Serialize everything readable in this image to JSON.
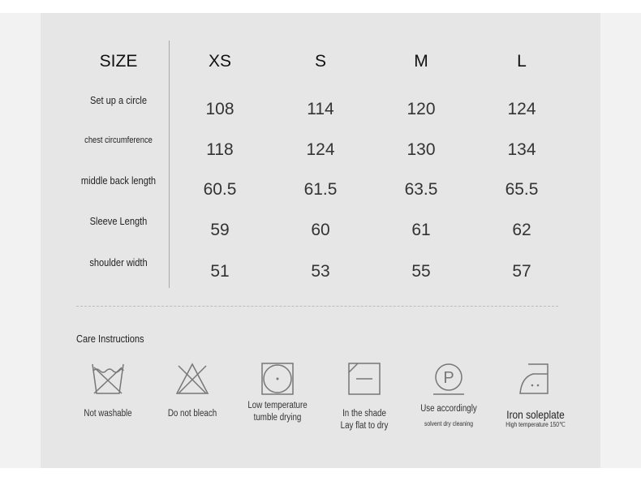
{
  "table": {
    "header": [
      "SIZE",
      "XS",
      "S",
      "M",
      "L"
    ],
    "rows": [
      {
        "label": "Set up a circle",
        "values": [
          "108",
          "114",
          "120",
          "124"
        ]
      },
      {
        "label": "chest circumference",
        "values": [
          "118",
          "124",
          "130",
          "134"
        ]
      },
      {
        "label": "middle back length",
        "values": [
          "60.5",
          "61.5",
          "63.5",
          "65.5"
        ]
      },
      {
        "label": "Sleeve Length",
        "values": [
          "59",
          "60",
          "61",
          "62"
        ]
      },
      {
        "label": "shoulder width",
        "values": [
          "51",
          "53",
          "55",
          "57"
        ]
      }
    ]
  },
  "care": {
    "title": "Care Instructions",
    "items": [
      {
        "icon": "no-wash-icon",
        "text": "Not washable"
      },
      {
        "icon": "no-bleach-icon",
        "text": "Do not bleach"
      },
      {
        "icon": "tumble-dry-low-icon",
        "text": "Low temperature tumble drying"
      },
      {
        "icon": "dry-flat-shade-icon",
        "text": "In the shade",
        "sub": "Lay flat to dry"
      },
      {
        "icon": "dry-clean-p-icon",
        "text": "Use accordingly",
        "sub": "solvent dry cleaning"
      },
      {
        "icon": "iron-icon",
        "text": "Iron soleplate",
        "sub": "High temperature 150℃"
      }
    ]
  }
}
